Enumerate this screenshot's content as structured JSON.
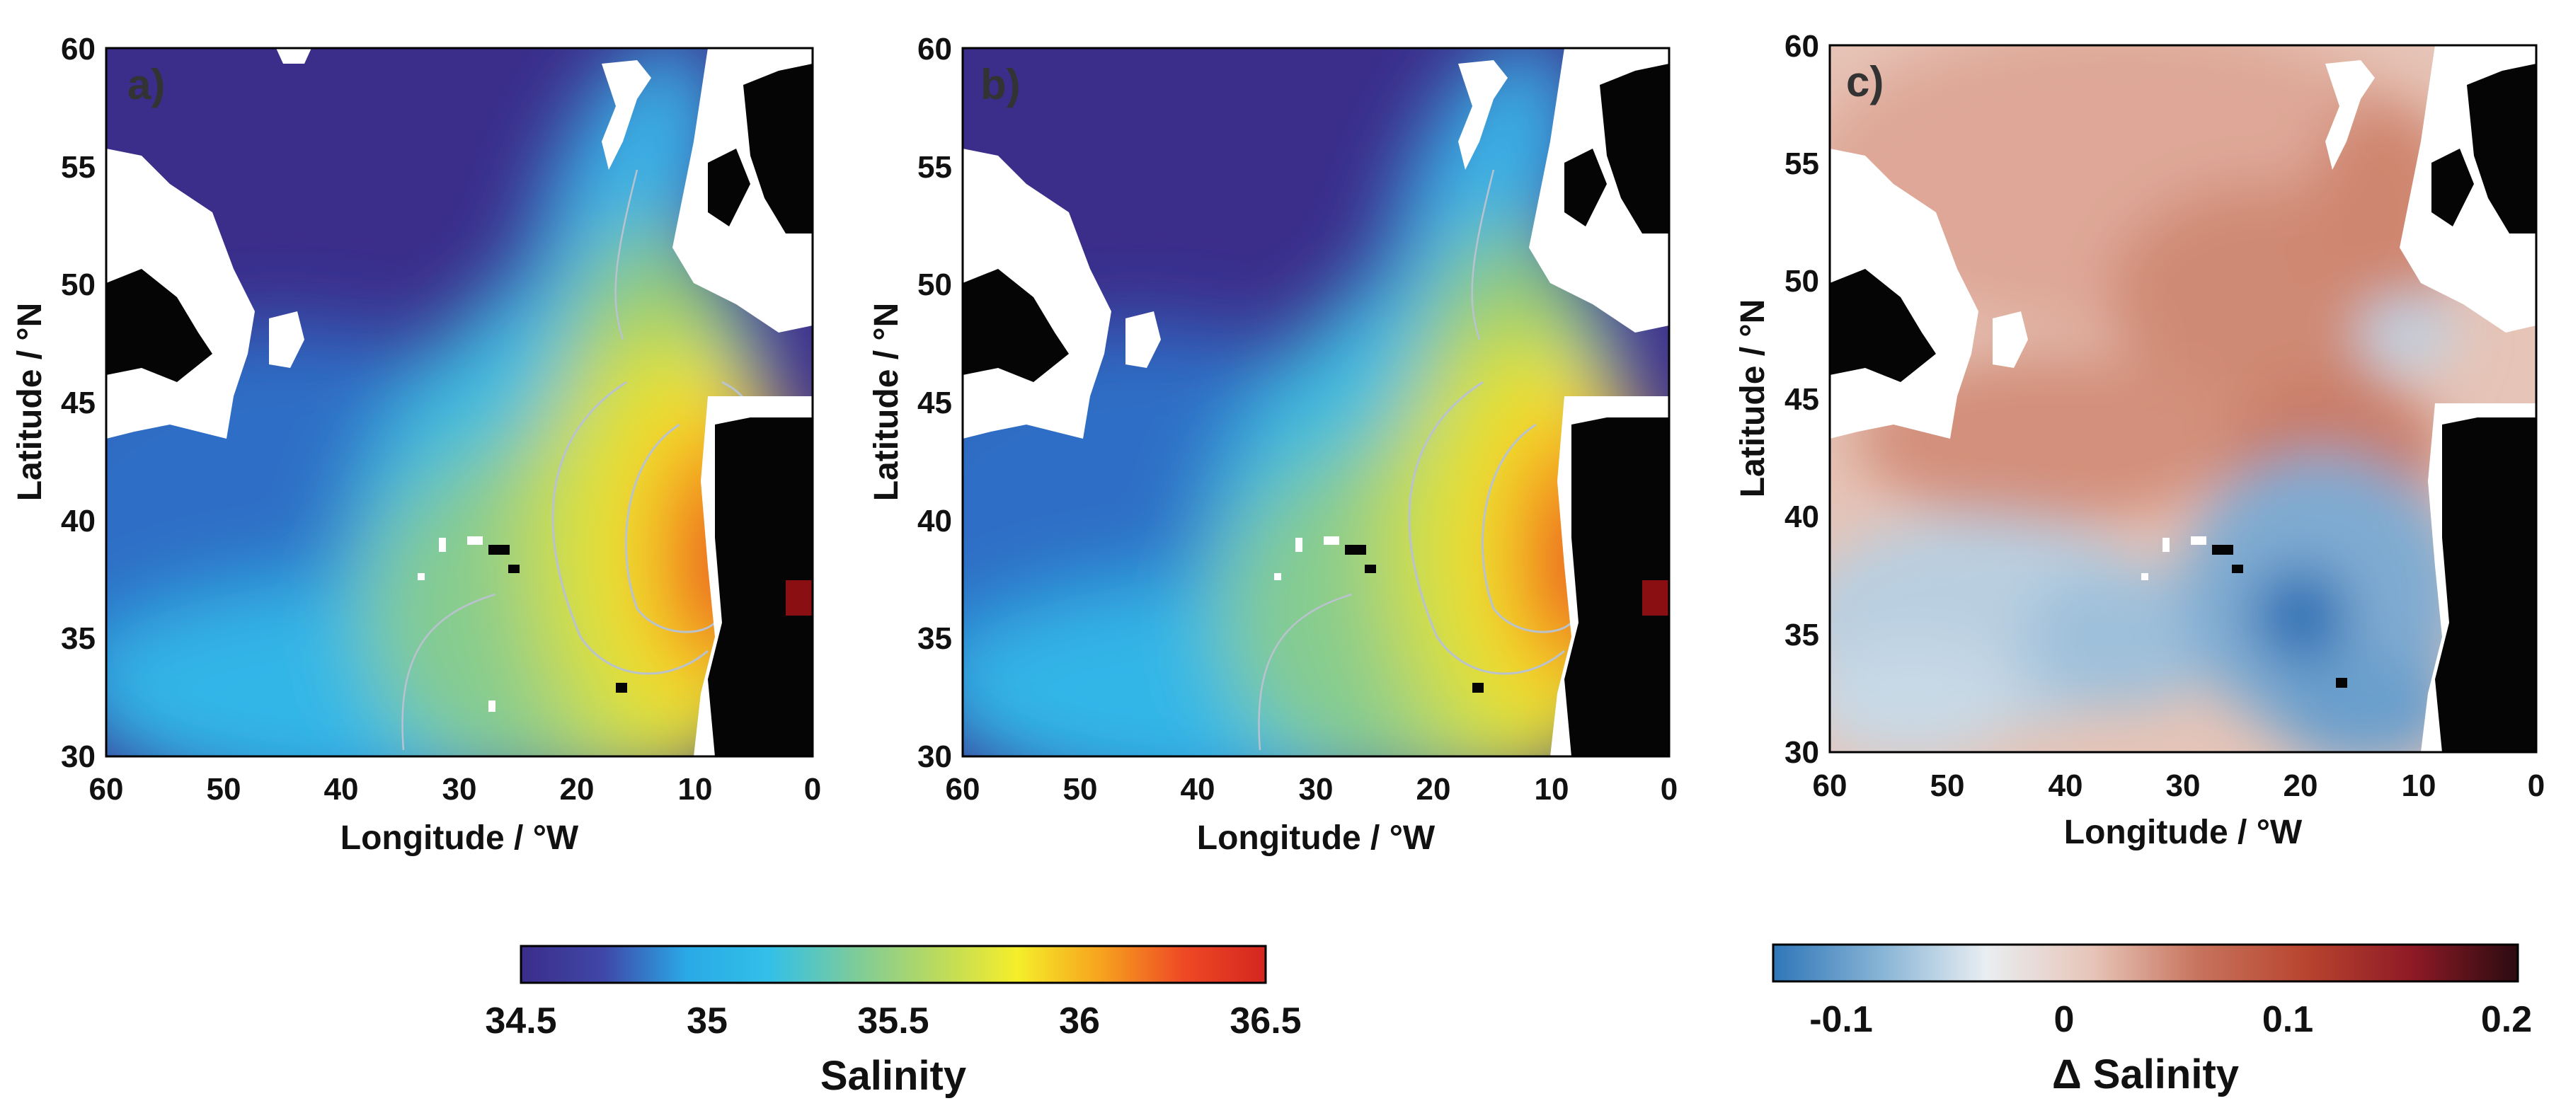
{
  "panels": [
    {
      "id": "a",
      "letter": "a)",
      "field": "salinity",
      "x_axis_title": "Longitude / °W",
      "y_axis_title": "Latitude / °N",
      "x_ticks": [
        "60",
        "50",
        "40",
        "30",
        "20",
        "10",
        "0"
      ],
      "y_ticks": [
        "30",
        "35",
        "40",
        "45",
        "50",
        "55",
        "60"
      ]
    },
    {
      "id": "b",
      "letter": "b)",
      "field": "salinity",
      "x_axis_title": "Longitude / °W",
      "y_axis_title": "Latitude / °N",
      "x_ticks": [
        "60",
        "50",
        "40",
        "30",
        "20",
        "10",
        "0"
      ],
      "y_ticks": [
        "30",
        "35",
        "40",
        "45",
        "50",
        "55",
        "60"
      ]
    },
    {
      "id": "c",
      "letter": "c)",
      "field": "delta_salinity",
      "x_axis_title": "Longitude / °W",
      "y_axis_title": "Latitude / °N",
      "x_ticks": [
        "60",
        "50",
        "40",
        "30",
        "20",
        "10",
        "0"
      ],
      "y_ticks": [
        "30",
        "35",
        "40",
        "45",
        "50",
        "55",
        "60"
      ]
    }
  ],
  "colorbars": {
    "salinity": {
      "title": "Salinity",
      "ticks": [
        "34.5",
        "35",
        "35.5",
        "36",
        "36.5"
      ],
      "range": [
        34.5,
        36.5
      ],
      "colors": [
        "#3b2d8a",
        "#3f47a8",
        "#2aa9e6",
        "#32c0e8",
        "#7acb9d",
        "#b8d960",
        "#f5ee2a",
        "#f7a31e",
        "#ee4a25",
        "#d4261f"
      ]
    },
    "delta_salinity": {
      "title": "Δ Salinity",
      "ticks": [
        "-0.1",
        "0",
        "0.1",
        "0.2"
      ],
      "range": [
        -0.13,
        0.21
      ],
      "colors": [
        "#2f76b8",
        "#86b3d5",
        "#e9eef2",
        "#e7c5b8",
        "#c7735d",
        "#b8452f",
        "#8f1a26",
        "#2b0b10"
      ]
    }
  },
  "colors": {
    "land": "#050505",
    "no_data": "#ffffff",
    "contour": "#b9c2cf"
  }
}
